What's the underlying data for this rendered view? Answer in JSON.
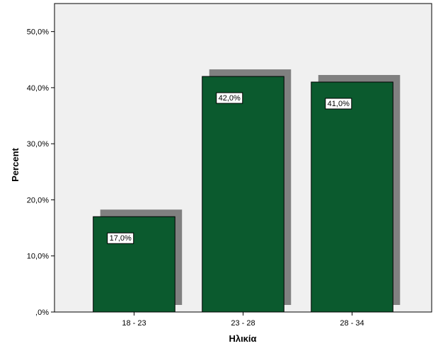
{
  "chart_data": {
    "type": "bar",
    "categories": [
      "18 - 23",
      "23 - 28",
      "28 - 34"
    ],
    "values": [
      17.0,
      42.0,
      41.0
    ],
    "data_labels": [
      "17,0%",
      "42,0%",
      "41,0%"
    ],
    "title": "",
    "xlabel": "Ηλικία",
    "ylabel": "Percent",
    "ylim": [
      0,
      55
    ],
    "yticks": [
      0,
      10,
      20,
      30,
      40,
      50
    ],
    "ytick_labels": [
      ",0%",
      "10,0%",
      "20,0%",
      "30,0%",
      "40,0%",
      "50,0%"
    ],
    "grid": false,
    "legend": "none",
    "colors": {
      "bar": "#0b5a2e",
      "shadow": "#808080",
      "plot_background": "#f0f0f0",
      "axis": "#000000"
    }
  }
}
